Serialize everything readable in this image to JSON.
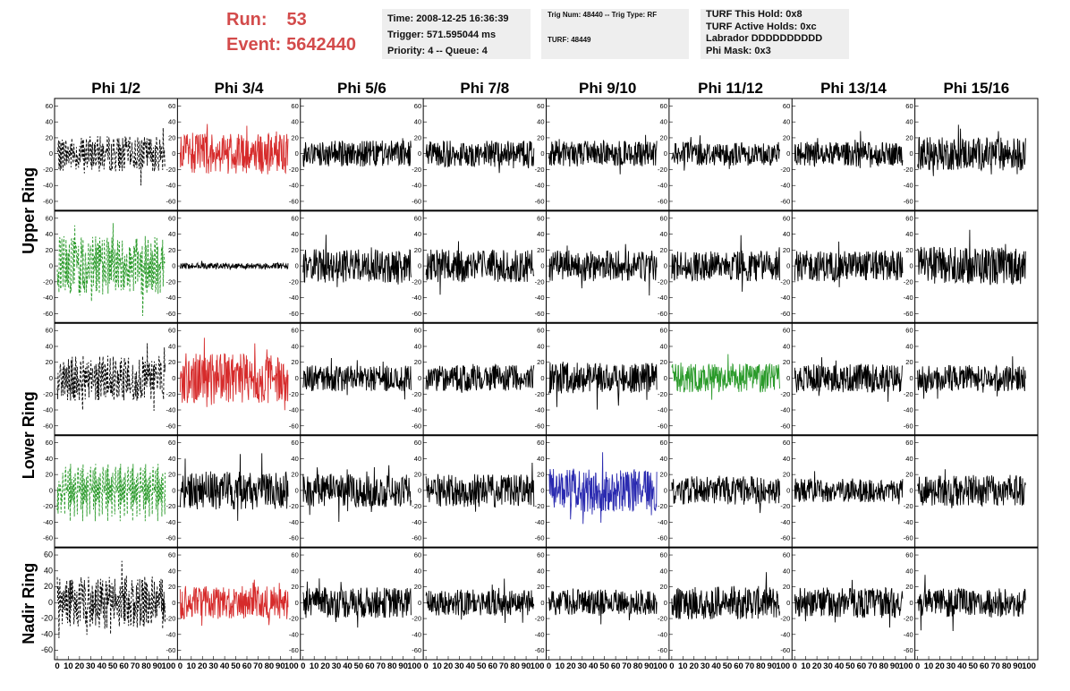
{
  "header": {
    "run_label": "Run:",
    "run_value": "53",
    "event_label": "Event:",
    "event_value": "5642440",
    "time": "Time: 2008-12-25 16:36:39",
    "trigger": "Trigger: 571.595044 ms",
    "priority": "Priority: 4 -- Queue: 4",
    "trig_num": "Trig Num: 48440 -- Trig Type: RF",
    "turf": "TURF: 48449",
    "turf_hold": "TURF This Hold: 0x8",
    "turf_active": "TURF Active Holds: 0xc",
    "labrador": "Labrador DDDDDDDDDD",
    "phi_mask": "Phi Mask: 0x3"
  },
  "colors": {
    "run_text": "#d34b4b",
    "black": "#000000",
    "red": "#d62b2b",
    "green": "#2a9a2a",
    "blue": "#2a2ab0"
  },
  "chart_data": {
    "type": "line",
    "columns": [
      "Phi 1/2",
      "Phi 3/4",
      "Phi 5/6",
      "Phi 7/8",
      "Phi 9/10",
      "Phi 11/12",
      "Phi 13/14",
      "Phi 15/16"
    ],
    "ring_labels": [
      "Upper Ring",
      "Lower Ring",
      "Nadir Ring"
    ],
    "rows": 5,
    "xlim": [
      0,
      100
    ],
    "x_ticks": [
      "0",
      "10",
      "20",
      "30",
      "40",
      "50",
      "60",
      "70",
      "80",
      "90",
      "100"
    ],
    "ylim": [
      -65,
      65
    ],
    "y_ticks": [
      "60",
      "40",
      "20",
      "0",
      "-20",
      "-40",
      "-60"
    ],
    "series": [
      {
        "row": 0,
        "col": 0,
        "color": "black",
        "style": "dashed",
        "amplitude": 30
      },
      {
        "row": 0,
        "col": 1,
        "color": "red",
        "style": "solid",
        "amplitude": 35
      },
      {
        "row": 0,
        "col": 2,
        "color": "black",
        "style": "solid",
        "amplitude": 22
      },
      {
        "row": 0,
        "col": 3,
        "color": "black",
        "style": "solid",
        "amplitude": 22
      },
      {
        "row": 0,
        "col": 4,
        "color": "black",
        "style": "solid",
        "amplitude": 22
      },
      {
        "row": 0,
        "col": 5,
        "color": "black",
        "style": "solid",
        "amplitude": 20
      },
      {
        "row": 0,
        "col": 6,
        "color": "black",
        "style": "solid",
        "amplitude": 20
      },
      {
        "row": 0,
        "col": 7,
        "color": "black",
        "style": "solid",
        "amplitude": 28
      },
      {
        "row": 1,
        "col": 0,
        "color": "green",
        "style": "dashed",
        "amplitude": 50
      },
      {
        "row": 1,
        "col": 1,
        "color": "black",
        "style": "solid",
        "amplitude": 5
      },
      {
        "row": 1,
        "col": 2,
        "color": "black",
        "style": "solid",
        "amplitude": 28
      },
      {
        "row": 1,
        "col": 3,
        "color": "black",
        "style": "solid",
        "amplitude": 28
      },
      {
        "row": 1,
        "col": 4,
        "color": "black",
        "style": "solid",
        "amplitude": 26
      },
      {
        "row": 1,
        "col": 5,
        "color": "black",
        "style": "solid",
        "amplitude": 26
      },
      {
        "row": 1,
        "col": 6,
        "color": "black",
        "style": "solid",
        "amplitude": 26
      },
      {
        "row": 1,
        "col": 7,
        "color": "black",
        "style": "solid",
        "amplitude": 32
      },
      {
        "row": 2,
        "col": 0,
        "color": "black",
        "style": "dashed",
        "amplitude": 38
      },
      {
        "row": 2,
        "col": 1,
        "color": "red",
        "style": "solid",
        "amplitude": 42
      },
      {
        "row": 2,
        "col": 2,
        "color": "black",
        "style": "solid",
        "amplitude": 22
      },
      {
        "row": 2,
        "col": 3,
        "color": "black",
        "style": "solid",
        "amplitude": 22
      },
      {
        "row": 2,
        "col": 4,
        "color": "black",
        "style": "solid",
        "amplitude": 26
      },
      {
        "row": 2,
        "col": 5,
        "color": "green",
        "style": "solid",
        "amplitude": 24
      },
      {
        "row": 2,
        "col": 6,
        "color": "black",
        "style": "solid",
        "amplitude": 24
      },
      {
        "row": 2,
        "col": 7,
        "color": "black",
        "style": "solid",
        "amplitude": 22
      },
      {
        "row": 3,
        "col": 0,
        "color": "green",
        "style": "dashed",
        "amplitude": 45
      },
      {
        "row": 3,
        "col": 1,
        "color": "black",
        "style": "solid",
        "amplitude": 32
      },
      {
        "row": 3,
        "col": 2,
        "color": "black",
        "style": "solid",
        "amplitude": 28
      },
      {
        "row": 3,
        "col": 3,
        "color": "black",
        "style": "solid",
        "amplitude": 28
      },
      {
        "row": 3,
        "col": 4,
        "color": "blue",
        "style": "solid",
        "amplitude": 36
      },
      {
        "row": 3,
        "col": 5,
        "color": "black",
        "style": "solid",
        "amplitude": 24
      },
      {
        "row": 3,
        "col": 6,
        "color": "black",
        "style": "solid",
        "amplitude": 20
      },
      {
        "row": 3,
        "col": 7,
        "color": "black",
        "style": "solid",
        "amplitude": 26
      },
      {
        "row": 4,
        "col": 0,
        "color": "black",
        "style": "dashed",
        "amplitude": 45
      },
      {
        "row": 4,
        "col": 1,
        "color": "red",
        "style": "solid",
        "amplitude": 28
      },
      {
        "row": 4,
        "col": 2,
        "color": "black",
        "style": "solid",
        "amplitude": 26
      },
      {
        "row": 4,
        "col": 3,
        "color": "black",
        "style": "solid",
        "amplitude": 22
      },
      {
        "row": 4,
        "col": 4,
        "color": "black",
        "style": "solid",
        "amplitude": 22
      },
      {
        "row": 4,
        "col": 5,
        "color": "black",
        "style": "solid",
        "amplitude": 28
      },
      {
        "row": 4,
        "col": 6,
        "color": "black",
        "style": "solid",
        "amplitude": 26
      },
      {
        "row": 4,
        "col": 7,
        "color": "black",
        "style": "solid",
        "amplitude": 24
      }
    ]
  }
}
